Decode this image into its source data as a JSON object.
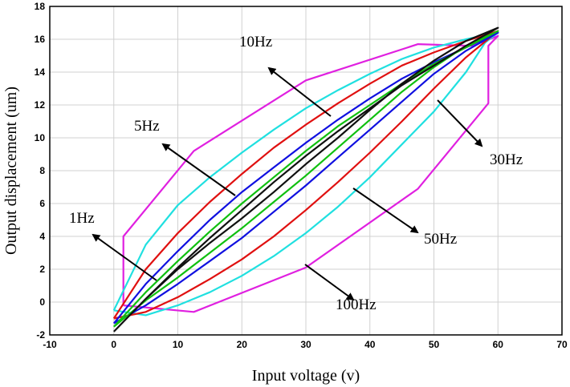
{
  "chart_data": {
    "type": "line",
    "title": "",
    "xlabel": "Input voltage (v)",
    "ylabel": "Output displacement (um)",
    "xlim": [
      -10,
      70
    ],
    "ylim": [
      -2,
      18
    ],
    "xticks": [
      -10,
      0,
      10,
      20,
      30,
      40,
      50,
      60,
      70
    ],
    "yticks": [
      -2,
      0,
      2,
      4,
      6,
      8,
      10,
      12,
      14,
      16,
      18
    ],
    "grid": true,
    "legend": "none",
    "series": [
      {
        "name": "100Hz",
        "color": "#e020e0",
        "x": [
          1.5,
          1.5,
          12.5,
          30,
          47.5,
          56,
          60,
          58.5,
          58.5,
          47.5,
          30,
          12.5,
          1.5
        ],
        "y": [
          -0.2,
          4.0,
          9.2,
          13.5,
          15.7,
          15.6,
          16.2,
          15.6,
          12.1,
          6.9,
          2.1,
          -0.6,
          -0.2
        ]
      },
      {
        "name": "50Hz",
        "color": "#20e0e0",
        "x": [
          0,
          5,
          10,
          15,
          20,
          25,
          30,
          35,
          40,
          45,
          50,
          55,
          60,
          58,
          55,
          50,
          45,
          40,
          35,
          30,
          25,
          20,
          15,
          10,
          5,
          0
        ],
        "y": [
          -0.5,
          3.5,
          5.9,
          7.6,
          9.1,
          10.5,
          11.8,
          12.9,
          13.9,
          14.8,
          15.5,
          16.0,
          16.4,
          15.8,
          14.0,
          11.6,
          9.6,
          7.6,
          5.8,
          4.2,
          2.8,
          1.6,
          0.6,
          -0.2,
          -0.8,
          -0.5
        ]
      },
      {
        "name": "30Hz",
        "color": "#e01010",
        "x": [
          0,
          5,
          10,
          15,
          20,
          25,
          30,
          35,
          40,
          45,
          50,
          55,
          60,
          55,
          50,
          45,
          40,
          35,
          30,
          25,
          20,
          15,
          10,
          5,
          0
        ],
        "y": [
          -1.0,
          2.0,
          4.2,
          6.1,
          7.8,
          9.4,
          10.8,
          12.1,
          13.3,
          14.4,
          15.2,
          15.9,
          16.5,
          14.9,
          13.0,
          11.0,
          9.1,
          7.3,
          5.6,
          4.0,
          2.6,
          1.4,
          0.3,
          -0.6,
          -1.0
        ]
      },
      {
        "name": "10Hz",
        "color": "#1010e0",
        "x": [
          0,
          5,
          10,
          15,
          20,
          25,
          30,
          35,
          40,
          45,
          50,
          55,
          60,
          55,
          50,
          45,
          40,
          35,
          30,
          25,
          20,
          15,
          10,
          5,
          0
        ],
        "y": [
          -1.3,
          1.1,
          3.1,
          5.0,
          6.7,
          8.2,
          9.7,
          11.1,
          12.4,
          13.6,
          14.6,
          15.5,
          16.4,
          15.3,
          13.9,
          12.2,
          10.5,
          8.8,
          7.1,
          5.5,
          3.9,
          2.5,
          1.1,
          -0.2,
          -1.3
        ]
      },
      {
        "name": "5Hz",
        "color": "#10c010",
        "x": [
          0,
          5,
          10,
          15,
          20,
          25,
          30,
          35,
          40,
          45,
          50,
          55,
          60,
          55,
          50,
          45,
          40,
          35,
          30,
          25,
          20,
          15,
          10,
          5,
          0
        ],
        "y": [
          -1.5,
          0.6,
          2.5,
          4.3,
          6.0,
          7.6,
          9.2,
          10.7,
          12.0,
          13.3,
          14.5,
          15.5,
          16.5,
          15.6,
          14.3,
          12.8,
          11.1,
          9.4,
          7.7,
          6.1,
          4.5,
          3.0,
          1.5,
          0.1,
          -1.5
        ]
      },
      {
        "name": "1Hz",
        "color": "#101010",
        "x": [
          0,
          5,
          10,
          15,
          20,
          25,
          30,
          35,
          40,
          45,
          50,
          55,
          60,
          55,
          50,
          45,
          40,
          35,
          30,
          25,
          20,
          15,
          10,
          5,
          0
        ],
        "y": [
          -1.8,
          0.2,
          2.1,
          3.9,
          5.6,
          7.3,
          8.9,
          10.4,
          11.8,
          13.2,
          14.4,
          15.6,
          16.7,
          15.9,
          14.7,
          13.3,
          11.7,
          10.0,
          8.4,
          6.7,
          5.1,
          3.6,
          2.0,
          0.2,
          -1.8
        ]
      }
    ],
    "annotations": [
      {
        "text": "10Hz",
        "label_x": 33,
        "label_y": 15.0,
        "arrow_from": [
          5,
          13.4
        ],
        "arrow_to": [
          -6,
          16.3
        ]
      },
      {
        "text": "5Hz",
        "label_x": 22,
        "label_y": 9.8,
        "arrow_from": [
          1,
          6.9
        ],
        "arrow_to": [
          -10,
          9.6
        ]
      },
      {
        "text": "1Hz",
        "label_x": 10,
        "label_y": 4.3,
        "arrow_from": [
          -2,
          1.4
        ],
        "arrow_to": [
          -9,
          4.4
        ]
      },
      {
        "text": "30Hz",
        "label_x": 82,
        "label_y": 7.0,
        "arrow_from": [
          -12,
          8.5
        ],
        "arrow_to": [
          -6,
          12.3
        ]
      },
      {
        "text": "50Hz",
        "label_x": 80,
        "label_y": 2.9,
        "arrow_from": [
          -10,
          8.2
        ],
        "arrow_to": [
          -10,
          8.2
        ]
      },
      {
        "text": "100Hz",
        "label_x": 85,
        "label_y": 2.8,
        "arrow_from": [
          -10,
          8.2
        ],
        "arrow_to": [
          -10,
          8.2
        ]
      }
    ]
  }
}
